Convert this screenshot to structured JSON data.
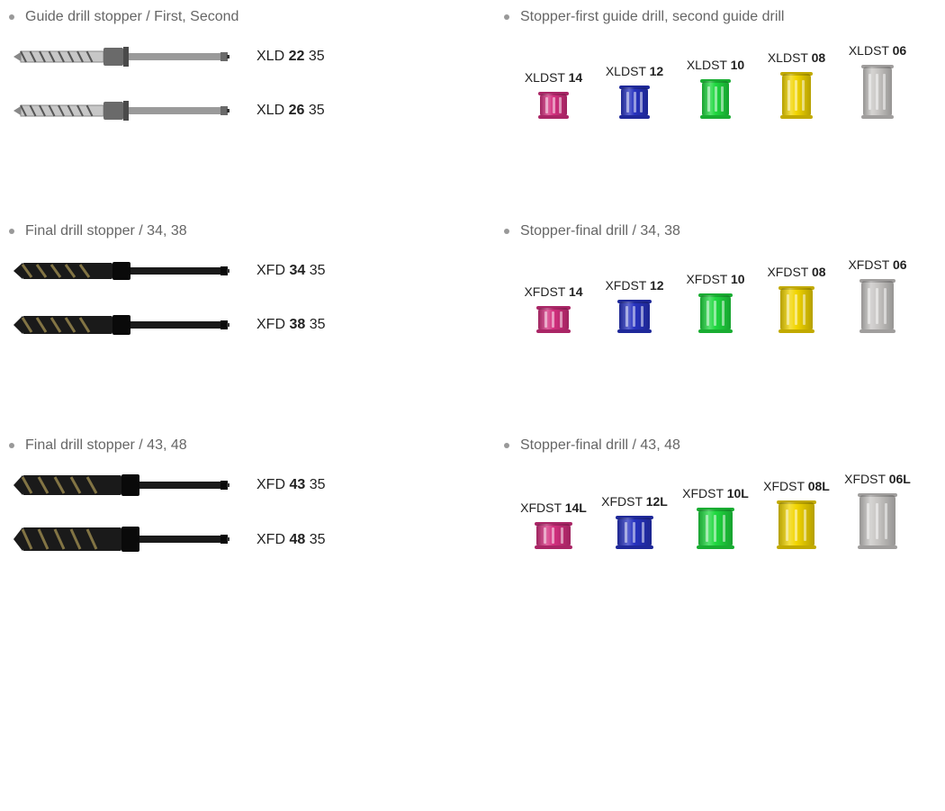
{
  "colors": {
    "magenta": "#d4307f",
    "blue": "#2733c0",
    "green": "#1fd83f",
    "yellow": "#f2d500",
    "silver": "#c8c6c4"
  },
  "drill_style": {
    "guide": {
      "tip": "fluted-silver",
      "shaft": "#9a9a9a",
      "collar": "#6b6b6b"
    },
    "final": {
      "tip": "fluted-dark",
      "shaft": "#1a1a1a",
      "collar": "#1a1a1a"
    }
  },
  "rows": [
    {
      "left": {
        "title": "Guide drill stopper / First, Second",
        "style": "guide",
        "items": [
          {
            "prefix": "XLD ",
            "bold": "22",
            "suffix": " 35",
            "tipW": 100,
            "shaftH": 14
          },
          {
            "prefix": "XLD ",
            "bold": "26",
            "suffix": " 35",
            "tipW": 100,
            "shaftH": 16
          }
        ]
      },
      "right": {
        "title": "Stopper-first guide drill, second guide drill",
        "labelPrefix": "XLDST ",
        "stoppers": [
          {
            "bold": "14",
            "suffix": "",
            "colorKey": "magenta",
            "w": 30,
            "h": 26
          },
          {
            "bold": "12",
            "suffix": "",
            "colorKey": "blue",
            "w": 30,
            "h": 33
          },
          {
            "bold": "10",
            "suffix": "",
            "colorKey": "green",
            "w": 30,
            "h": 40
          },
          {
            "bold": "08",
            "suffix": "",
            "colorKey": "yellow",
            "w": 32,
            "h": 48
          },
          {
            "bold": "06",
            "suffix": "",
            "colorKey": "silver",
            "w": 32,
            "h": 56
          }
        ]
      }
    },
    {
      "left": {
        "title": "Final drill stopper / 34, 38",
        "style": "final",
        "items": [
          {
            "prefix": "XFD ",
            "bold": "34",
            "suffix": " 35",
            "tipW": 110,
            "shaftH": 18
          },
          {
            "prefix": "XFD ",
            "bold": "38",
            "suffix": " 35",
            "tipW": 110,
            "shaftH": 20
          }
        ]
      },
      "right": {
        "title": "Stopper-final drill / 34, 38",
        "labelPrefix": "XFDST ",
        "stoppers": [
          {
            "bold": "14",
            "suffix": "",
            "colorKey": "magenta",
            "w": 34,
            "h": 26
          },
          {
            "bold": "12",
            "suffix": "",
            "colorKey": "blue",
            "w": 34,
            "h": 33
          },
          {
            "bold": "10",
            "suffix": "",
            "colorKey": "green",
            "w": 34,
            "h": 40
          },
          {
            "bold": "08",
            "suffix": "",
            "colorKey": "yellow",
            "w": 36,
            "h": 48
          },
          {
            "bold": "06",
            "suffix": "",
            "colorKey": "silver",
            "w": 36,
            "h": 56
          }
        ]
      }
    },
    {
      "left": {
        "title": "Final drill stopper / 43, 48",
        "style": "final",
        "items": [
          {
            "prefix": "XFD ",
            "bold": "43",
            "suffix": " 35",
            "tipW": 120,
            "shaftH": 22
          },
          {
            "prefix": "XFD ",
            "bold": "48",
            "suffix": " 35",
            "tipW": 120,
            "shaftH": 26
          }
        ]
      },
      "right": {
        "title": "Stopper-final drill / 43, 48",
        "labelPrefix": "XFDST ",
        "stoppers": [
          {
            "bold": "14L",
            "suffix": "",
            "colorKey": "magenta",
            "w": 38,
            "h": 26
          },
          {
            "bold": "12L",
            "suffix": "",
            "colorKey": "blue",
            "w": 38,
            "h": 33
          },
          {
            "bold": "10L",
            "suffix": "",
            "colorKey": "green",
            "w": 38,
            "h": 42
          },
          {
            "bold": "08L",
            "suffix": "",
            "colorKey": "yellow",
            "w": 40,
            "h": 50
          },
          {
            "bold": "06L",
            "suffix": "",
            "colorKey": "silver",
            "w": 40,
            "h": 58
          }
        ]
      }
    }
  ]
}
